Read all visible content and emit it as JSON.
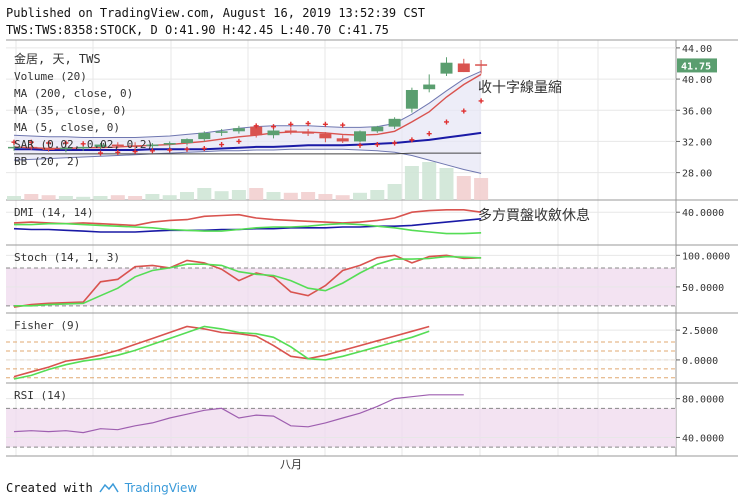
{
  "header": {
    "line1": "Published on TradingView.com, August 16, 2019 13:52:39 CST",
    "line2": "TWS:TWS:8358:STOCK, D O:41.90 H:42.45 L:40.70 C:41.75"
  },
  "footer": {
    "created": "Created with",
    "brand": "TradingView"
  },
  "colors": {
    "up": "#5a9e6f",
    "down": "#d9534f",
    "ma200": "#444444",
    "ma35": "#1a1aa6",
    "ma5": "#d9534f",
    "sar": "#e03030",
    "bb": "#6f77b0",
    "bbfill": "#e6e6f5",
    "plus": "#2a3cc0",
    "green": "#55dd55",
    "grid": "#e7e7e7",
    "band": "#f0dcef",
    "rsi": "#9e5fb0"
  },
  "chart_data": [
    {
      "type": "candlestick",
      "title": "金居, 天, TWS",
      "legend": [
        "Volume (20)",
        "MA (200, close, 0)",
        "MA (35, close, 0)",
        "MA (5, close, 0)",
        "SAR (0.02, 0.02, 0.2)",
        "BB (20, 2)"
      ],
      "y_ticks": [
        "44.00",
        "40.00",
        "36.00",
        "32.00",
        "28.00"
      ],
      "ylim": [
        25.0,
        44.5
      ],
      "last_price": "41.75",
      "annotation": "收十字線量縮",
      "x_label": "八月",
      "candles": [
        [
          31.2,
          31.6,
          30.8,
          31.3
        ],
        [
          31.3,
          31.6,
          30.9,
          31.1
        ],
        [
          31.1,
          31.5,
          30.7,
          31.0
        ],
        [
          31.0,
          31.4,
          30.6,
          31.2
        ],
        [
          31.2,
          31.6,
          30.8,
          31.3
        ],
        [
          31.3,
          31.8,
          31.0,
          31.6
        ],
        [
          31.6,
          31.9,
          31.1,
          31.5
        ],
        [
          31.5,
          31.9,
          31.0,
          31.4
        ],
        [
          31.4,
          31.8,
          31.0,
          31.6
        ],
        [
          31.6,
          32.0,
          31.2,
          31.8
        ],
        [
          31.8,
          32.4,
          31.5,
          32.3
        ],
        [
          32.3,
          33.3,
          32.0,
          33.1
        ],
        [
          33.1,
          33.6,
          32.7,
          33.3
        ],
        [
          33.3,
          34.0,
          33.0,
          33.7
        ],
        [
          33.9,
          34.2,
          32.5,
          32.8
        ],
        [
          32.8,
          33.8,
          32.4,
          33.4
        ],
        [
          33.4,
          33.8,
          32.9,
          33.2
        ],
        [
          33.2,
          33.6,
          32.7,
          33.0
        ],
        [
          33.0,
          33.2,
          31.9,
          32.4
        ],
        [
          32.4,
          32.8,
          31.8,
          32.0
        ],
        [
          32.0,
          33.4,
          31.9,
          33.3
        ],
        [
          33.3,
          34.0,
          33.1,
          33.9
        ],
        [
          33.9,
          35.1,
          33.6,
          34.9
        ],
        [
          36.2,
          38.9,
          35.7,
          38.6
        ],
        [
          38.7,
          40.6,
          38.3,
          39.3
        ],
        [
          40.7,
          42.8,
          40.4,
          42.1
        ],
        [
          42.0,
          42.6,
          40.9,
          40.9
        ],
        [
          41.9,
          42.45,
          40.7,
          41.75
        ]
      ],
      "ma200": [
        30.4,
        30.4,
        30.4,
        30.4,
        30.4,
        30.4,
        30.4,
        30.4,
        30.4,
        30.4,
        30.4,
        30.4,
        30.4,
        30.4,
        30.4,
        30.4,
        30.4,
        30.4,
        30.4,
        30.4,
        30.4,
        30.4,
        30.4,
        30.5,
        30.5,
        30.5,
        30.5,
        30.5
      ],
      "ma35": [
        31.0,
        31.0,
        30.9,
        30.9,
        30.9,
        30.9,
        30.9,
        30.9,
        31.0,
        31.0,
        31.0,
        31.0,
        31.1,
        31.2,
        31.3,
        31.3,
        31.4,
        31.5,
        31.5,
        31.5,
        31.6,
        31.7,
        31.8,
        32.0,
        32.2,
        32.5,
        32.8,
        33.1
      ],
      "ma5": [
        31.3,
        31.2,
        31.1,
        31.1,
        31.2,
        31.2,
        31.3,
        31.4,
        31.5,
        31.6,
        31.8,
        32.0,
        32.3,
        32.6,
        32.8,
        33.1,
        33.2,
        33.2,
        33.1,
        32.9,
        32.8,
        32.9,
        33.3,
        34.5,
        35.8,
        37.7,
        39.3,
        40.6
      ],
      "bb_upper": [
        32.8,
        32.7,
        32.6,
        32.6,
        32.5,
        32.5,
        32.5,
        32.5,
        32.6,
        32.7,
        32.9,
        33.1,
        33.4,
        33.7,
        33.9,
        34.0,
        34.0,
        34.0,
        33.9,
        33.8,
        33.8,
        33.9,
        34.3,
        35.5,
        36.9,
        38.5,
        40.0,
        41.0
      ],
      "bb_lower": [
        29.6,
        29.7,
        29.8,
        29.9,
        30.0,
        30.1,
        30.2,
        30.3,
        30.4,
        30.5,
        30.6,
        30.7,
        30.8,
        30.8,
        30.9,
        30.9,
        31.0,
        31.0,
        31.0,
        31.0,
        30.9,
        30.8,
        30.6,
        30.2,
        29.6,
        29.0,
        28.4,
        27.9
      ],
      "sar": [
        31.9,
        31.9,
        31.8,
        31.8,
        31.7,
        30.5,
        30.6,
        30.7,
        30.8,
        30.9,
        31.0,
        31.1,
        31.6,
        32.0,
        34.0,
        33.9,
        34.2,
        34.3,
        34.2,
        34.1,
        31.5,
        31.6,
        31.8,
        32.2,
        33.0,
        34.5,
        35.9,
        37.2
      ],
      "volume": [
        0.1,
        0.15,
        0.12,
        0.1,
        0.08,
        0.1,
        0.12,
        0.1,
        0.15,
        0.12,
        0.2,
        0.3,
        0.22,
        0.25,
        0.3,
        0.2,
        0.18,
        0.2,
        0.15,
        0.12,
        0.18,
        0.25,
        0.4,
        0.85,
        0.95,
        0.8,
        0.6,
        0.55
      ]
    },
    {
      "type": "line",
      "title": "DMI (14, 14)",
      "y_ticks": [
        "40.0000"
      ],
      "ylim": [
        5,
        50
      ],
      "annotation": "多方買盤收斂休息",
      "series": [
        {
          "color": "#d9534f",
          "values": [
            27,
            28,
            27,
            26,
            27,
            26,
            25,
            24,
            28,
            30,
            31,
            35,
            36,
            37,
            33,
            31,
            30,
            29,
            28,
            27,
            28,
            30,
            33,
            40,
            42,
            43,
            43,
            40
          ]
        },
        {
          "color": "#1a1aa6",
          "values": [
            20,
            19,
            19,
            18,
            17,
            16,
            16,
            16,
            17,
            18,
            18,
            18,
            19,
            19,
            20,
            20,
            21,
            21,
            21,
            22,
            22,
            23,
            23,
            24,
            26,
            28,
            30,
            32
          ]
        },
        {
          "color": "#55dd55",
          "values": [
            25,
            25,
            26,
            26,
            25,
            24,
            23,
            22,
            21,
            19,
            18,
            17,
            17,
            19,
            21,
            22,
            22,
            23,
            25,
            26,
            25,
            23,
            21,
            18,
            16,
            14,
            14,
            15
          ]
        }
      ]
    },
    {
      "type": "line",
      "title": "Stoch (14, 1, 3)",
      "y_ticks": [
        "100.0000",
        "50.0000"
      ],
      "ylim": [
        15,
        110
      ],
      "band": [
        20,
        80
      ],
      "series": [
        {
          "color": "#d9534f",
          "values": [
            18,
            22,
            24,
            25,
            26,
            58,
            62,
            82,
            84,
            80,
            92,
            88,
            78,
            60,
            72,
            66,
            42,
            36,
            52,
            76,
            84,
            96,
            100,
            88,
            98,
            100,
            95,
            96
          ]
        },
        {
          "color": "#55dd55",
          "values": [
            20,
            20,
            22,
            23,
            24,
            36,
            48,
            66,
            76,
            80,
            86,
            86,
            84,
            74,
            70,
            68,
            60,
            48,
            44,
            56,
            72,
            86,
            94,
            94,
            95,
            98,
            97,
            96
          ]
        }
      ]
    },
    {
      "type": "line",
      "title": "Fisher (9)",
      "y_ticks": [
        "2.5000",
        "0.0000"
      ],
      "ylim": [
        -1.6,
        3.6
      ],
      "levels": [
        1.5,
        0.75,
        0.0,
        -0.75,
        -1.5
      ],
      "series": [
        {
          "color": "#d9534f",
          "values": [
            -1.4,
            -1.0,
            -0.6,
            -0.1,
            0.1,
            0.4,
            0.8,
            1.3,
            1.8,
            2.3,
            2.8,
            2.6,
            2.3,
            2.2,
            2.0,
            1.2,
            0.3,
            0.1,
            0.4,
            0.8,
            1.2,
            1.6,
            2.0,
            2.4,
            2.8
          ]
        },
        {
          "color": "#55dd55",
          "values": [
            -1.6,
            -1.3,
            -0.8,
            -0.4,
            -0.1,
            0.1,
            0.4,
            0.8,
            1.3,
            1.8,
            2.3,
            2.8,
            2.6,
            2.3,
            2.2,
            1.9,
            1.1,
            0.1,
            0.0,
            0.3,
            0.7,
            1.1,
            1.5,
            1.9,
            2.4
          ]
        }
      ]
    },
    {
      "type": "line",
      "title": "RSI (14)",
      "y_ticks": [
        "80.0000",
        "40.0000"
      ],
      "ylim": [
        25,
        92
      ],
      "band": [
        30,
        70
      ],
      "series": [
        {
          "color": "#9e5fb0",
          "values": [
            46,
            47,
            46,
            47,
            45,
            49,
            48,
            52,
            55,
            60,
            64,
            68,
            70,
            60,
            63,
            62,
            52,
            51,
            55,
            60,
            65,
            72,
            80,
            82,
            84,
            84,
            84
          ]
        }
      ]
    }
  ]
}
